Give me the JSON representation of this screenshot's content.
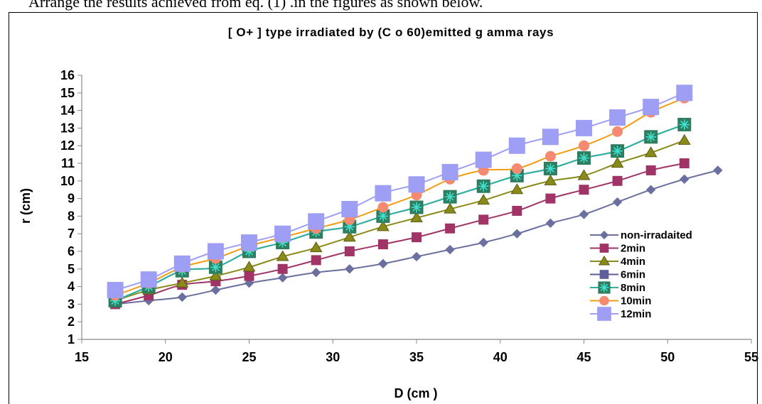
{
  "caption": "Arrange the results achieved from eq. (1) .in the figures as shown below.",
  "chart_data": {
    "type": "line",
    "title": "[ O+ ] type irradiated by (C o 60)emitted g amma rays",
    "xlabel": "D (cm )",
    "ylabel": "r (cm)",
    "xlim": [
      15,
      55
    ],
    "ylim": [
      1,
      16
    ],
    "xticks": [
      15,
      20,
      25,
      30,
      35,
      40,
      45,
      50,
      55
    ],
    "yticks": [
      1,
      2,
      3,
      4,
      5,
      6,
      7,
      8,
      9,
      10,
      11,
      12,
      13,
      14,
      15,
      16
    ],
    "grid": false,
    "legend_position": "lower-right",
    "series": [
      {
        "name": "non-irradaited",
        "marker": "diamond",
        "color": "#6B6F9F",
        "x": [
          17,
          19,
          21,
          23,
          25,
          27,
          29,
          31,
          33,
          35,
          37,
          39,
          41,
          43,
          45,
          47,
          49,
          51,
          53
        ],
        "y": [
          3.0,
          3.2,
          3.4,
          3.8,
          4.2,
          4.5,
          4.8,
          5.0,
          5.3,
          5.7,
          6.1,
          6.5,
          7.0,
          7.6,
          8.1,
          8.8,
          9.5,
          10.1,
          10.6
        ]
      },
      {
        "name": "2min",
        "marker": "square",
        "color": "#A03466",
        "x": [
          17,
          19,
          21,
          23,
          25,
          27,
          29,
          31,
          33,
          35,
          37,
          39,
          41,
          43,
          45,
          47,
          49,
          51
        ],
        "y": [
          3.0,
          3.5,
          4.1,
          4.3,
          4.6,
          5.0,
          5.5,
          6.0,
          6.4,
          6.8,
          7.3,
          7.8,
          8.3,
          9.0,
          9.5,
          10.0,
          10.6,
          11.0
        ]
      },
      {
        "name": "4min",
        "marker": "triangle",
        "color": "#8A8A1A",
        "x": [
          17,
          19,
          21,
          23,
          25,
          27,
          29,
          31,
          33,
          35,
          37,
          39,
          41,
          43,
          45,
          47,
          49,
          51
        ],
        "y": [
          3.2,
          3.8,
          4.2,
          4.6,
          5.1,
          5.7,
          6.2,
          6.8,
          7.4,
          7.9,
          8.4,
          8.9,
          9.5,
          10.0,
          10.3,
          11.0,
          11.6,
          12.3
        ]
      },
      {
        "name": "6min",
        "marker": "square",
        "color": "#5E5E9A",
        "x": [
          17,
          19,
          21,
          23,
          25,
          27,
          29,
          31,
          33,
          35,
          37,
          39,
          41,
          43,
          45,
          47,
          49,
          51
        ],
        "y": [
          3.2,
          4.0,
          4.9,
          5.1,
          6.0,
          6.5,
          7.1,
          7.4,
          8.0,
          8.5,
          9.1,
          9.7,
          10.3,
          10.7,
          11.3,
          11.7,
          12.5,
          13.2
        ]
      },
      {
        "name": "8min",
        "marker": "square-asterisk",
        "color": "#2DB3A0",
        "x": [
          17,
          19,
          21,
          23,
          25,
          27,
          29,
          31,
          33,
          35,
          37,
          39,
          41,
          43,
          45,
          47,
          49,
          51
        ],
        "y": [
          3.2,
          4.0,
          4.9,
          5.1,
          6.0,
          6.5,
          7.1,
          7.4,
          8.0,
          8.5,
          9.1,
          9.7,
          10.3,
          10.7,
          11.3,
          11.7,
          12.5,
          13.2
        ]
      },
      {
        "name": "10min",
        "marker": "circle",
        "color": "#F39C12",
        "x": [
          17,
          19,
          21,
          23,
          25,
          27,
          29,
          31,
          33,
          35,
          37,
          39,
          41,
          43,
          45,
          47,
          49,
          51
        ],
        "y": [
          3.5,
          4.2,
          5.1,
          5.6,
          6.3,
          6.8,
          7.3,
          7.8,
          8.5,
          9.2,
          10.1,
          10.6,
          10.7,
          11.4,
          12.0,
          12.8,
          13.9,
          14.7
        ]
      },
      {
        "name": "12min",
        "marker": "square",
        "color": "#9E9EF5",
        "x": [
          17,
          19,
          21,
          23,
          25,
          27,
          29,
          31,
          33,
          35,
          37,
          39,
          41,
          43,
          45,
          47,
          49,
          51
        ],
        "y": [
          3.8,
          4.4,
          5.3,
          6.0,
          6.5,
          7.0,
          7.7,
          8.4,
          9.3,
          9.8,
          10.5,
          11.2,
          12.0,
          12.5,
          13.0,
          13.6,
          14.2,
          15.0
        ]
      }
    ]
  }
}
